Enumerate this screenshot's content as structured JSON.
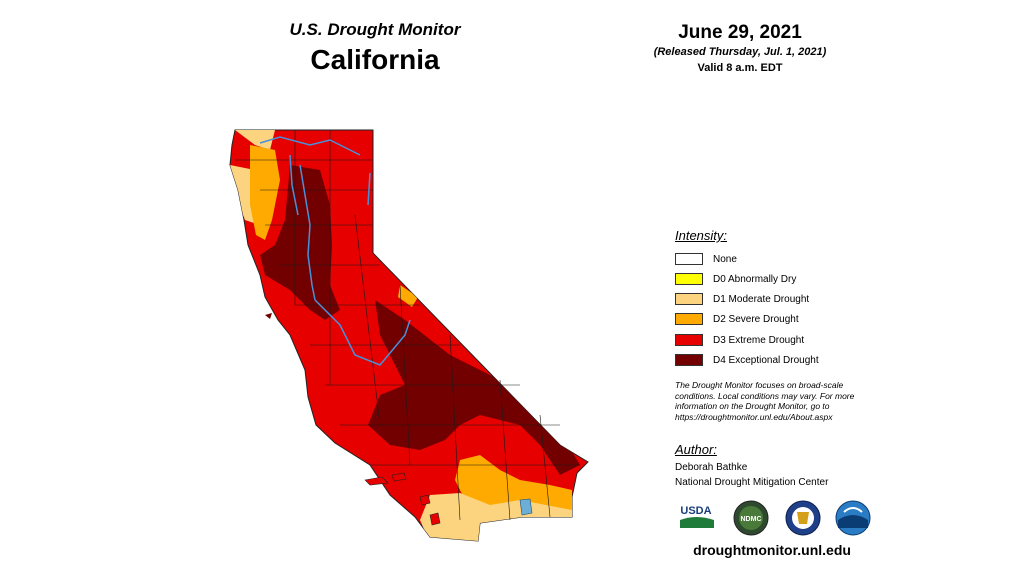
{
  "header": {
    "subtitle": "U.S. Drought Monitor",
    "title": "California",
    "date": "June 29, 2021",
    "released": "(Released Thursday, Jul. 1, 2021)",
    "valid": "Valid 8 a.m. EDT"
  },
  "legend": {
    "heading": "Intensity:",
    "items": [
      {
        "label": "None",
        "color": "#ffffff"
      },
      {
        "label": "D0 Abnormally Dry",
        "color": "#ffff00"
      },
      {
        "label": "D1 Moderate Drought",
        "color": "#fcd37f"
      },
      {
        "label": "D2 Severe Drought",
        "color": "#ffaa00"
      },
      {
        "label": "D3 Extreme Drought",
        "color": "#e60000"
      },
      {
        "label": "D4 Exceptional Drought",
        "color": "#730000"
      }
    ]
  },
  "note": "The Drought Monitor focuses on broad-scale conditions. Local conditions may vary. For more information on the Drought Monitor, go to https://droughtmonitor.unl.edu/About.aspx",
  "author": {
    "heading": "Author:",
    "name": "Deborah Bathke",
    "org": "National Drought Mitigation Center"
  },
  "logos": {
    "usda": "USDA",
    "ndmc": "NDMC"
  },
  "website": "droughtmonitor.unl.edu",
  "colors": {
    "d1": "#fcd37f",
    "d2": "#ffaa00",
    "d3": "#e60000",
    "d4": "#730000",
    "rivers": "#4a90d9",
    "county_lines": "#1a1a1a"
  }
}
